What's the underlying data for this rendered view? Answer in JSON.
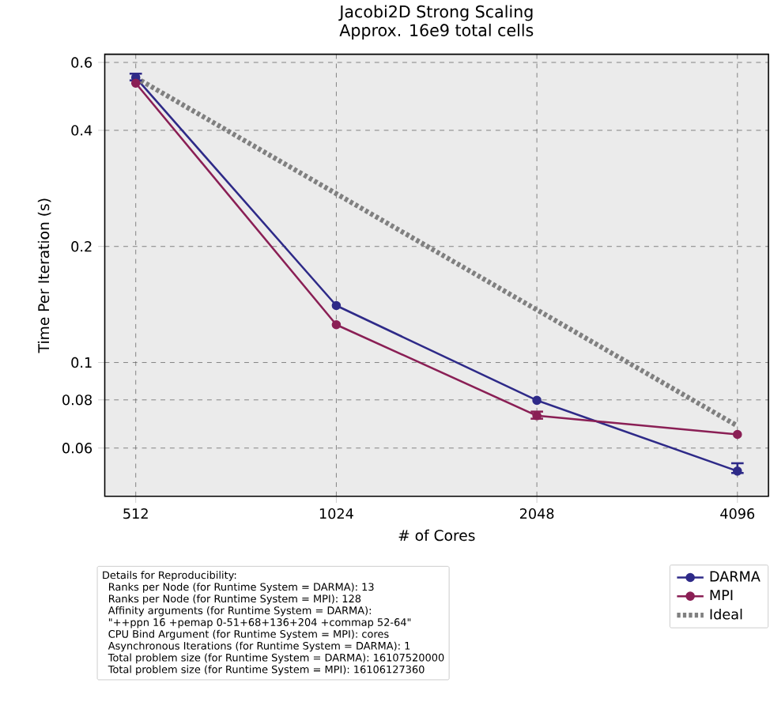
{
  "chart_data": {
    "type": "line",
    "title": "Jacobi2D Strong Scaling",
    "subtitle": "Approx. 16e9 total cells",
    "xlabel": "# of Cores",
    "ylabel": "Time Per Iteration (s)",
    "x": [
      512,
      1024,
      2048,
      4096
    ],
    "series": [
      {
        "name": "DARMA",
        "color": "#2e2a88",
        "values": [
          0.548,
          0.1405,
          0.0798,
          0.0523
        ],
        "errors": [
          [
            0.539,
            0.561
          ],
          null,
          null,
          [
            0.0517,
            0.0548
          ]
        ],
        "marker": "circle",
        "line_style": "solid"
      },
      {
        "name": "MPI",
        "color": "#8a1f55",
        "values": [
          0.53,
          0.1253,
          0.0728,
          0.0651
        ],
        "errors": [
          null,
          null,
          [
            0.0715,
            0.0746
          ],
          null
        ],
        "marker": "circle",
        "line_style": "solid"
      },
      {
        "name": "Ideal",
        "color": "#808080",
        "values": [
          0.548,
          0.274,
          0.137,
          0.0685
        ],
        "marker": "none",
        "line_style": "dotted"
      }
    ],
    "log": "xy",
    "xlim": [
      460,
      4560
    ],
    "ylim": [
      0.045,
      0.63
    ],
    "xticks": [
      512,
      1024,
      2048,
      4096
    ],
    "yticks": [
      0.06,
      0.08,
      0.1,
      0.2,
      0.4,
      0.6
    ],
    "grid": true,
    "legend": "bottom right",
    "annotations": [
      "Details for Reproducibility:",
      "Ranks per Node (for Runtime System = DARMA):  13",
      "Ranks per Node (for Runtime System = MPI):  128",
      "Affinity arguments (for Runtime System = DARMA):",
      "\"++ppn 16 +pemap 0-51+68+136+204 +commap 52-64\"",
      "CPU Bind Argument (for Runtime System = MPI):  cores",
      "Asynchronous Iterations (for Runtime System = DARMA):  1",
      "Total problem size (for Runtime System = DARMA):  16107520000",
      "Total problem size (for Runtime System = MPI):  16106127360"
    ]
  }
}
